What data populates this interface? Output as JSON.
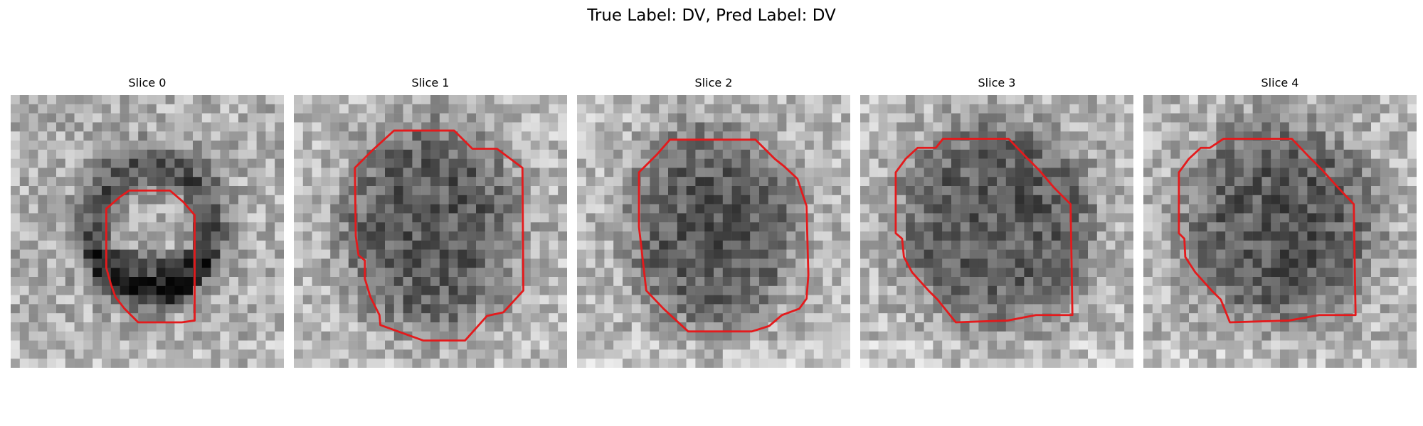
{
  "figure": {
    "title": "True Label: DV, Pred Label: DV"
  },
  "contour_color": "#e41a1c",
  "slices": [
    {
      "title": "Slice 0"
    },
    {
      "title": "Slice 1"
    },
    {
      "title": "Slice 2"
    },
    {
      "title": "Slice 3"
    },
    {
      "title": "Slice 4"
    }
  ]
}
